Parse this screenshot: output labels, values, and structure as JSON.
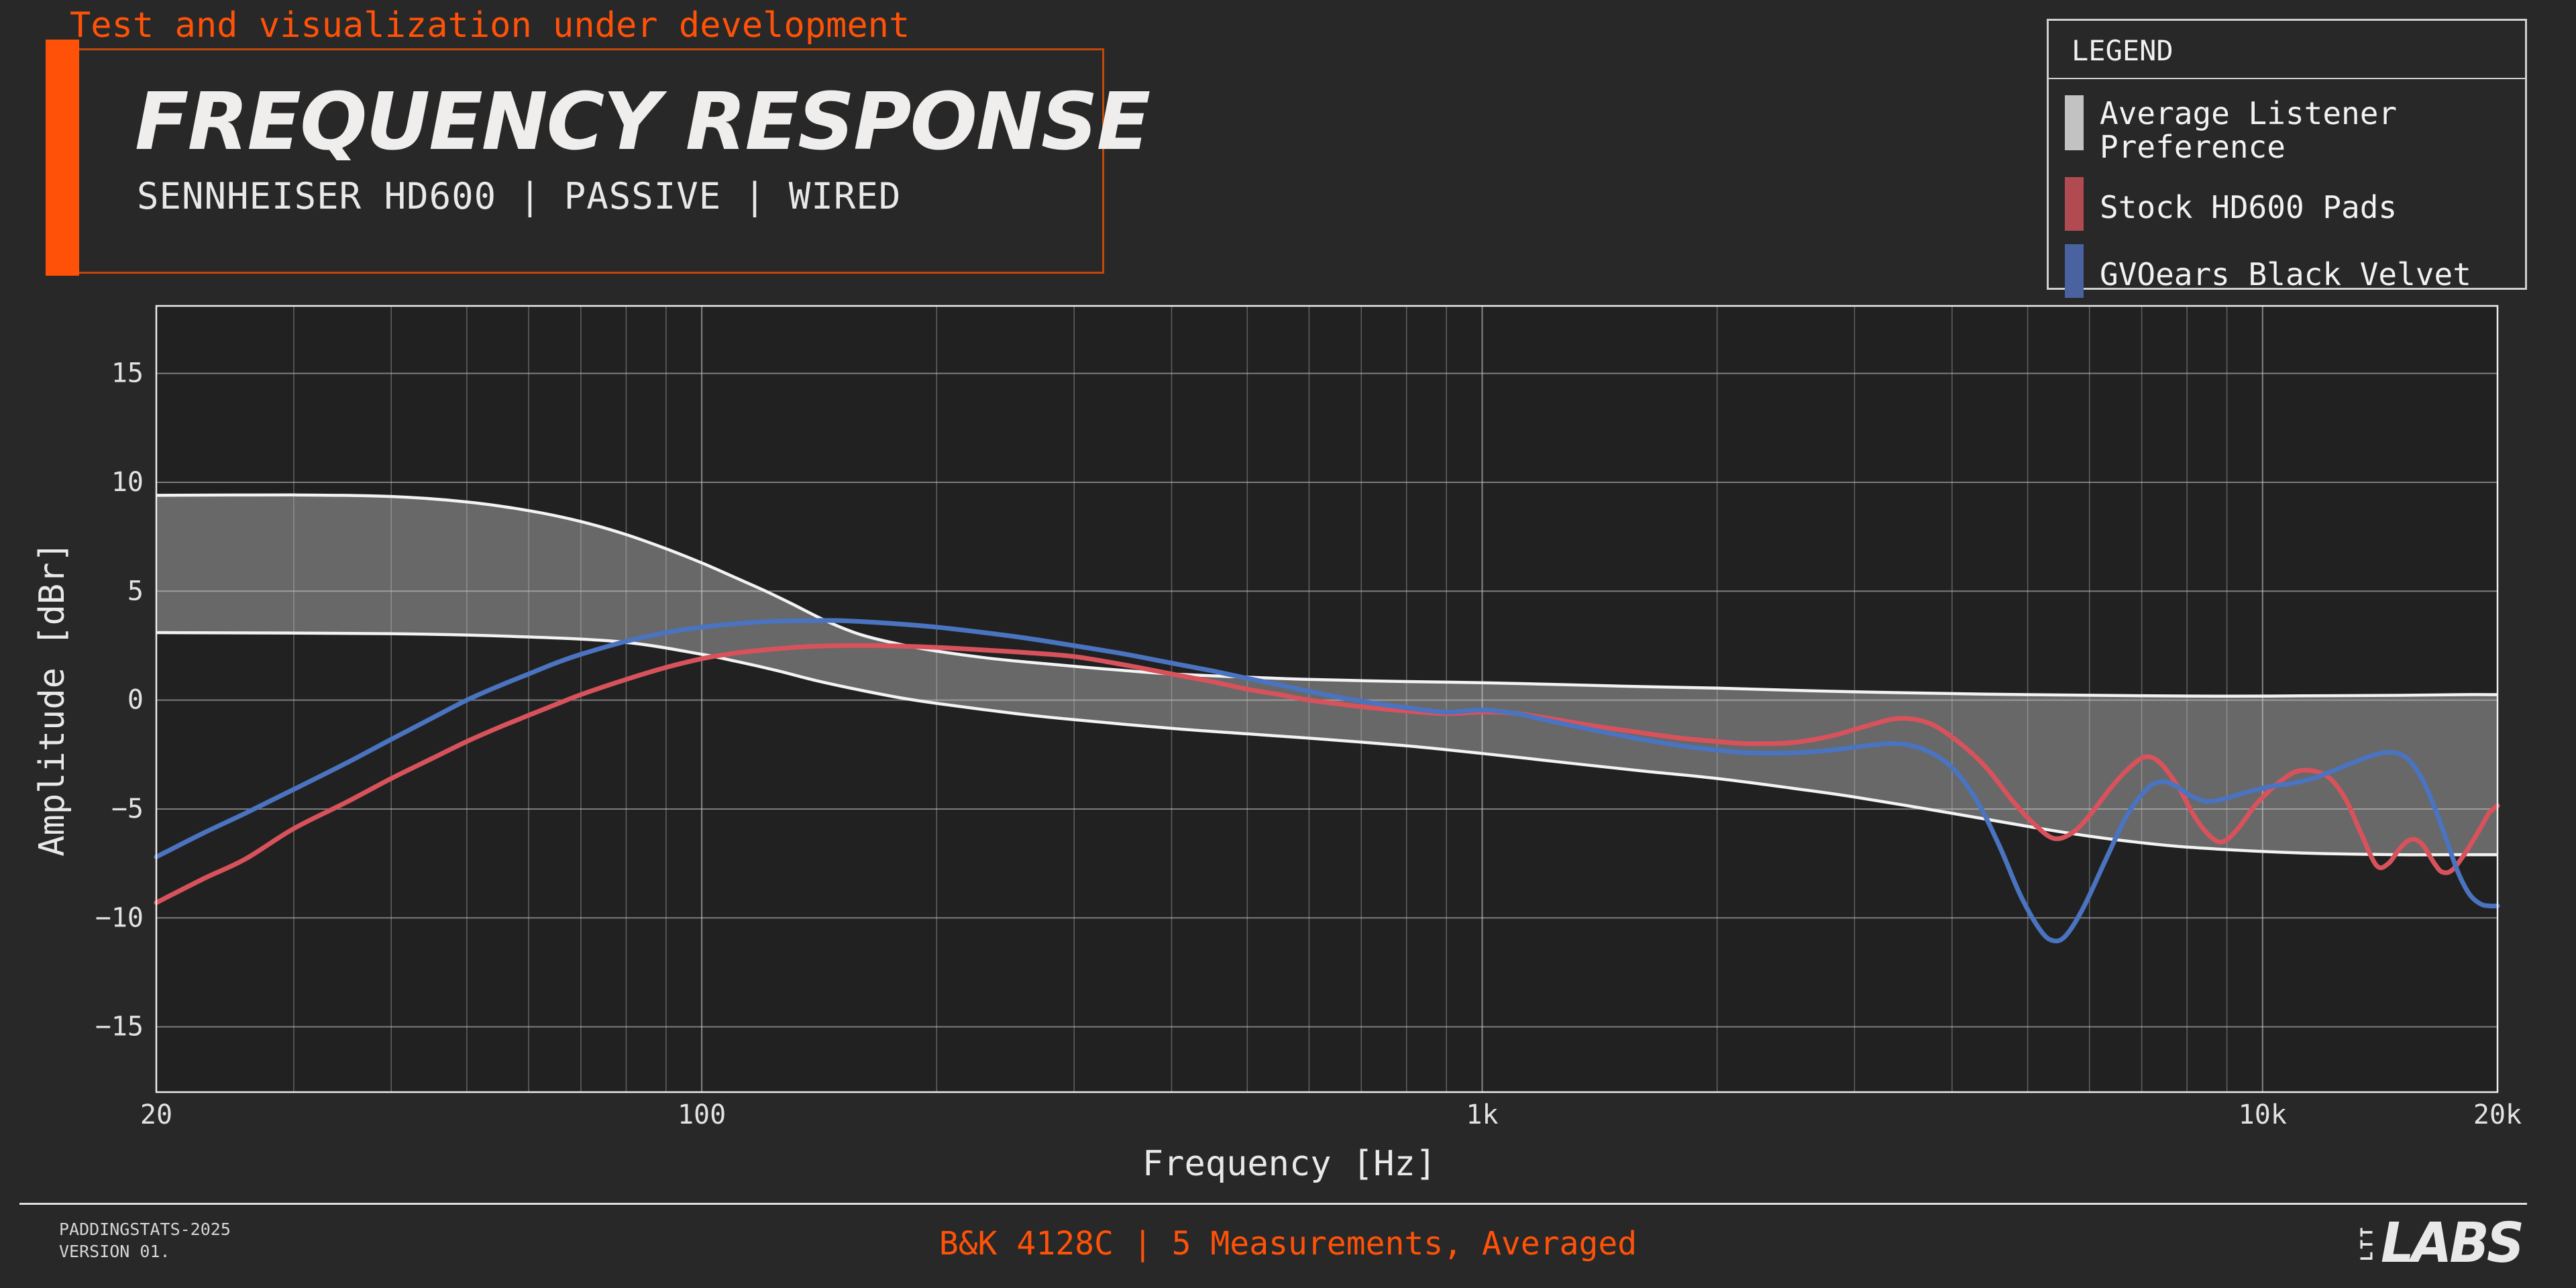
{
  "banner": {
    "text": "Test and visualization under development"
  },
  "header": {
    "title": "FREQUENCY RESPONSE",
    "subtitle": "SENNHEISER HD600 | PASSIVE | WIRED"
  },
  "legend": {
    "title": "LEGEND",
    "items": [
      {
        "label": "Average Listener Preference",
        "color": "#c2c2c2"
      },
      {
        "label": "Stock HD600 Pads",
        "color": "#b24a52"
      },
      {
        "label": "GVOears Black Velvet",
        "color": "#4a629f"
      }
    ]
  },
  "footer": {
    "doc_id": "PADDINGSTATS-2025",
    "version": "VERSION 01.",
    "measurement": "B&K 4128C | 5 Measurements, Averaged",
    "logo_ltt": "LTT",
    "logo_labs": "LABS"
  },
  "colors": {
    "page_bg": "#282828",
    "plot_bg": "#212121",
    "accent_orange": "#ff5208",
    "accent_orange_dim": "#c2490b",
    "grid": "#c9c9c9",
    "frame": "#ededed",
    "band_fill": "rgba(203,203,203,0.42)",
    "band_edge": "#f3f3f3",
    "red_curve": "#d8525c",
    "blue_curve": "#4a73c0"
  },
  "chart_data": {
    "type": "line",
    "title": "FREQUENCY RESPONSE",
    "xlabel": "Frequency [Hz]",
    "ylabel": "Amplitude [dBr]",
    "x_scale": "log",
    "xlim": [
      20,
      20000
    ],
    "ylim": [
      -18.0,
      18.1
    ],
    "grid": "on",
    "legend_position": "top-right",
    "x_ticks": [
      {
        "value": 20,
        "label": "20"
      },
      {
        "value": 100,
        "label": "100"
      },
      {
        "value": 1000,
        "label": "1k"
      },
      {
        "value": 10000,
        "label": "10k"
      },
      {
        "value": 20000,
        "label": "20k"
      }
    ],
    "y_ticks": [
      {
        "value": 15,
        "label": "15"
      },
      {
        "value": 10,
        "label": "10"
      },
      {
        "value": 5,
        "label": "5"
      },
      {
        "value": 0,
        "label": "0"
      },
      {
        "value": -5,
        "label": "−5"
      },
      {
        "value": -10,
        "label": "−10"
      },
      {
        "value": -15,
        "label": "−15"
      }
    ],
    "minor_x_gridlines": [
      30,
      40,
      50,
      60,
      70,
      80,
      90,
      200,
      300,
      400,
      500,
      600,
      700,
      800,
      900,
      2000,
      3000,
      4000,
      5000,
      6000,
      7000,
      8000,
      9000
    ],
    "major_x_gridlines": [
      100,
      1000,
      10000
    ],
    "series": [
      {
        "name": "Average Listener Preference",
        "type": "band",
        "edge_color": "#f3f3f3",
        "fill_color": "rgba(203,203,203,0.42)",
        "upper": [
          [
            20,
            9.4
          ],
          [
            30,
            9.42
          ],
          [
            40,
            9.35
          ],
          [
            50,
            9.1
          ],
          [
            60,
            8.7
          ],
          [
            70,
            8.2
          ],
          [
            80,
            7.6
          ],
          [
            90,
            6.95
          ],
          [
            100,
            6.3
          ],
          [
            110,
            5.65
          ],
          [
            120,
            5.05
          ],
          [
            130,
            4.45
          ],
          [
            145,
            3.6
          ],
          [
            160,
            3.0
          ],
          [
            180,
            2.55
          ],
          [
            200,
            2.25
          ],
          [
            230,
            1.95
          ],
          [
            260,
            1.75
          ],
          [
            300,
            1.55
          ],
          [
            350,
            1.35
          ],
          [
            400,
            1.2
          ],
          [
            500,
            1.05
          ],
          [
            600,
            0.95
          ],
          [
            800,
            0.85
          ],
          [
            1000,
            0.8
          ],
          [
            1300,
            0.7
          ],
          [
            1600,
            0.62
          ],
          [
            2000,
            0.55
          ],
          [
            2500,
            0.45
          ],
          [
            3000,
            0.38
          ],
          [
            4000,
            0.3
          ],
          [
            5000,
            0.25
          ],
          [
            7000,
            0.2
          ],
          [
            9000,
            0.18
          ],
          [
            12000,
            0.2
          ],
          [
            15000,
            0.22
          ],
          [
            18000,
            0.25
          ],
          [
            20000,
            0.25
          ]
        ],
        "lower": [
          [
            20,
            3.1
          ],
          [
            40,
            3.05
          ],
          [
            60,
            2.9
          ],
          [
            80,
            2.65
          ],
          [
            100,
            2.1
          ],
          [
            110,
            1.8
          ],
          [
            125,
            1.35
          ],
          [
            140,
            0.9
          ],
          [
            160,
            0.45
          ],
          [
            180,
            0.1
          ],
          [
            200,
            -0.15
          ],
          [
            250,
            -0.6
          ],
          [
            300,
            -0.9
          ],
          [
            400,
            -1.3
          ],
          [
            500,
            -1.55
          ],
          [
            600,
            -1.75
          ],
          [
            800,
            -2.1
          ],
          [
            1000,
            -2.45
          ],
          [
            1300,
            -2.9
          ],
          [
            1600,
            -3.25
          ],
          [
            2000,
            -3.6
          ],
          [
            2500,
            -4.05
          ],
          [
            3000,
            -4.45
          ],
          [
            4000,
            -5.2
          ],
          [
            5000,
            -5.8
          ],
          [
            6000,
            -6.25
          ],
          [
            7000,
            -6.55
          ],
          [
            8000,
            -6.75
          ],
          [
            10000,
            -6.95
          ],
          [
            12000,
            -7.05
          ],
          [
            15000,
            -7.1
          ],
          [
            18000,
            -7.1
          ],
          [
            20000,
            -7.1
          ]
        ]
      },
      {
        "name": "Stock HD600 Pads",
        "type": "line",
        "color": "#d8525c",
        "points": [
          [
            20,
            -9.3
          ],
          [
            23,
            -8.2
          ],
          [
            26,
            -7.3
          ],
          [
            30,
            -5.9
          ],
          [
            35,
            -4.7
          ],
          [
            40,
            -3.6
          ],
          [
            45,
            -2.7
          ],
          [
            50,
            -1.9
          ],
          [
            55,
            -1.25
          ],
          [
            60,
            -0.7
          ],
          [
            65,
            -0.2
          ],
          [
            70,
            0.25
          ],
          [
            80,
            0.95
          ],
          [
            90,
            1.5
          ],
          [
            100,
            1.9
          ],
          [
            110,
            2.15
          ],
          [
            120,
            2.3
          ],
          [
            135,
            2.45
          ],
          [
            150,
            2.5
          ],
          [
            170,
            2.5
          ],
          [
            200,
            2.42
          ],
          [
            230,
            2.3
          ],
          [
            260,
            2.18
          ],
          [
            300,
            2.0
          ],
          [
            350,
            1.6
          ],
          [
            400,
            1.2
          ],
          [
            450,
            0.85
          ],
          [
            500,
            0.5
          ],
          [
            550,
            0.25
          ],
          [
            600,
            0.0
          ],
          [
            700,
            -0.3
          ],
          [
            800,
            -0.5
          ],
          [
            900,
            -0.62
          ],
          [
            1000,
            -0.55
          ],
          [
            1100,
            -0.6
          ],
          [
            1200,
            -0.8
          ],
          [
            1400,
            -1.2
          ],
          [
            1600,
            -1.5
          ],
          [
            1800,
            -1.75
          ],
          [
            2000,
            -1.9
          ],
          [
            2200,
            -2.0
          ],
          [
            2500,
            -1.95
          ],
          [
            2800,
            -1.65
          ],
          [
            3100,
            -1.2
          ],
          [
            3400,
            -0.85
          ],
          [
            3700,
            -1.0
          ],
          [
            4000,
            -1.7
          ],
          [
            4400,
            -3.0
          ],
          [
            4800,
            -4.7
          ],
          [
            5100,
            -5.7
          ],
          [
            5400,
            -6.35
          ],
          [
            5700,
            -6.1
          ],
          [
            6000,
            -5.3
          ],
          [
            6400,
            -4.0
          ],
          [
            6800,
            -3.0
          ],
          [
            7100,
            -2.6
          ],
          [
            7400,
            -2.9
          ],
          [
            7800,
            -4.0
          ],
          [
            8200,
            -5.4
          ],
          [
            8600,
            -6.3
          ],
          [
            8900,
            -6.5
          ],
          [
            9300,
            -5.9
          ],
          [
            9800,
            -4.8
          ],
          [
            10400,
            -3.9
          ],
          [
            11000,
            -3.3
          ],
          [
            11600,
            -3.25
          ],
          [
            12200,
            -3.6
          ],
          [
            12800,
            -4.6
          ],
          [
            13400,
            -6.2
          ],
          [
            14000,
            -7.6
          ],
          [
            14500,
            -7.5
          ],
          [
            15000,
            -6.8
          ],
          [
            15500,
            -6.4
          ],
          [
            16000,
            -6.6
          ],
          [
            16600,
            -7.5
          ],
          [
            17000,
            -7.9
          ],
          [
            17500,
            -7.8
          ],
          [
            18200,
            -7.0
          ],
          [
            19000,
            -5.9
          ],
          [
            19500,
            -5.2
          ],
          [
            20000,
            -4.85
          ]
        ]
      },
      {
        "name": "GVOears Black Velvet",
        "type": "line",
        "color": "#4a73c0",
        "points": [
          [
            20,
            -7.2
          ],
          [
            23,
            -6.1
          ],
          [
            26,
            -5.2
          ],
          [
            30,
            -4.1
          ],
          [
            35,
            -2.9
          ],
          [
            40,
            -1.8
          ],
          [
            45,
            -0.85
          ],
          [
            50,
            0.0
          ],
          [
            55,
            0.65
          ],
          [
            60,
            1.2
          ],
          [
            65,
            1.7
          ],
          [
            70,
            2.1
          ],
          [
            80,
            2.7
          ],
          [
            90,
            3.1
          ],
          [
            100,
            3.35
          ],
          [
            110,
            3.5
          ],
          [
            120,
            3.6
          ],
          [
            135,
            3.65
          ],
          [
            150,
            3.65
          ],
          [
            170,
            3.55
          ],
          [
            200,
            3.35
          ],
          [
            230,
            3.1
          ],
          [
            260,
            2.85
          ],
          [
            300,
            2.5
          ],
          [
            350,
            2.1
          ],
          [
            400,
            1.7
          ],
          [
            450,
            1.35
          ],
          [
            500,
            1.0
          ],
          [
            550,
            0.7
          ],
          [
            600,
            0.4
          ],
          [
            700,
            -0.05
          ],
          [
            800,
            -0.35
          ],
          [
            900,
            -0.55
          ],
          [
            1000,
            -0.45
          ],
          [
            1100,
            -0.6
          ],
          [
            1200,
            -0.9
          ],
          [
            1400,
            -1.4
          ],
          [
            1600,
            -1.8
          ],
          [
            1800,
            -2.1
          ],
          [
            2000,
            -2.3
          ],
          [
            2200,
            -2.42
          ],
          [
            2500,
            -2.42
          ],
          [
            2800,
            -2.3
          ],
          [
            3100,
            -2.1
          ],
          [
            3400,
            -2.0
          ],
          [
            3700,
            -2.3
          ],
          [
            4000,
            -3.1
          ],
          [
            4300,
            -4.6
          ],
          [
            4600,
            -6.7
          ],
          [
            4900,
            -9.0
          ],
          [
            5200,
            -10.6
          ],
          [
            5400,
            -11.05
          ],
          [
            5600,
            -10.8
          ],
          [
            5900,
            -9.5
          ],
          [
            6300,
            -7.3
          ],
          [
            6700,
            -5.3
          ],
          [
            7100,
            -4.1
          ],
          [
            7400,
            -3.75
          ],
          [
            7700,
            -3.9
          ],
          [
            8100,
            -4.4
          ],
          [
            8500,
            -4.65
          ],
          [
            9000,
            -4.5
          ],
          [
            9600,
            -4.2
          ],
          [
            10300,
            -3.95
          ],
          [
            11000,
            -3.8
          ],
          [
            11700,
            -3.55
          ],
          [
            12400,
            -3.2
          ],
          [
            13100,
            -2.85
          ],
          [
            13800,
            -2.55
          ],
          [
            14400,
            -2.4
          ],
          [
            14900,
            -2.45
          ],
          [
            15400,
            -2.75
          ],
          [
            16000,
            -3.6
          ],
          [
            16600,
            -4.9
          ],
          [
            17200,
            -6.4
          ],
          [
            17800,
            -7.9
          ],
          [
            18400,
            -8.9
          ],
          [
            19000,
            -9.35
          ],
          [
            19500,
            -9.45
          ],
          [
            20000,
            -9.45
          ]
        ]
      }
    ]
  }
}
